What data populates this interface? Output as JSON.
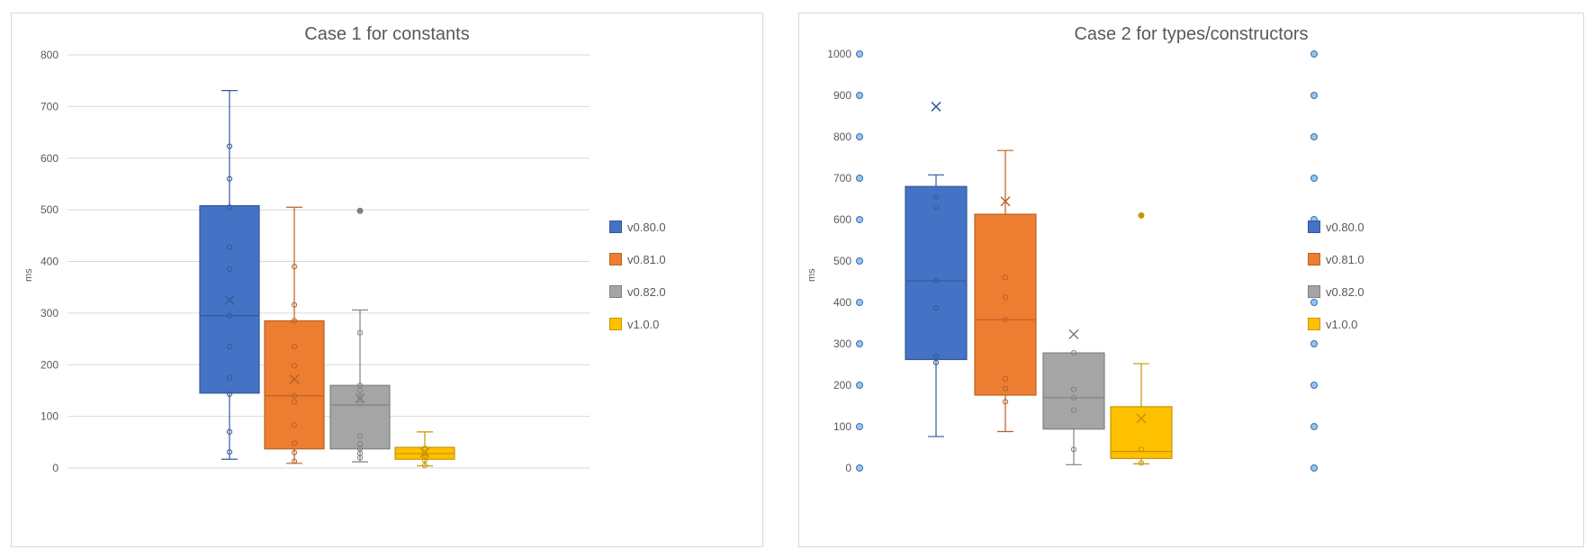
{
  "chart_data": [
    {
      "type": "box",
      "title": "Case 1 for constants",
      "ylabel": "ms",
      "ylim": [
        0,
        800
      ],
      "yticks": [
        0,
        100,
        200,
        300,
        400,
        500,
        600,
        700,
        800
      ],
      "grid": true,
      "legend_position": "right",
      "series": [
        {
          "name": "v0.80.0",
          "color": "#4472c4",
          "min": 17,
          "q1": 145,
          "median": 295,
          "q3": 508,
          "max": 731,
          "mean": 325,
          "points": [
            31,
            70,
            143,
            175,
            235,
            295,
            385,
            428,
            505,
            560,
            623
          ]
        },
        {
          "name": "v0.81.0",
          "color": "#ed7d31",
          "min": 9,
          "q1": 37,
          "median": 140,
          "q3": 285,
          "max": 505,
          "mean": 172,
          "points": [
            13,
            30,
            48,
            83,
            128,
            140,
            198,
            235,
            285,
            316,
            390
          ]
        },
        {
          "name": "v0.82.0",
          "color": "#a5a5a5",
          "min": 12,
          "q1": 37,
          "median": 122,
          "q3": 160,
          "max": 306,
          "mean": 135,
          "points": [
            20,
            28,
            37,
            47,
            62,
            125,
            138,
            150,
            160,
            262
          ],
          "outliers": [
            498
          ]
        },
        {
          "name": "v1.0.0",
          "color": "#ffc000",
          "min": 4,
          "q1": 17,
          "median": 28,
          "q3": 40,
          "max": 70,
          "mean": 30,
          "points": [
            5,
            15,
            22,
            28,
            38
          ]
        }
      ]
    },
    {
      "type": "box",
      "title": "Case 2 for types/constructors",
      "ylabel": "ms",
      "ylim": [
        0,
        1000
      ],
      "yticks": [
        0,
        100,
        200,
        300,
        400,
        500,
        600,
        700,
        800,
        900,
        1000
      ],
      "grid": false,
      "legend_position": "right",
      "series": [
        {
          "name": "v0.80.0",
          "color": "#4472c4",
          "min": 76,
          "q1": 262,
          "median": 452,
          "q3": 680,
          "max": 708,
          "mean": 873,
          "points": [
            255,
            270,
            387,
            452,
            630,
            655
          ]
        },
        {
          "name": "v0.81.0",
          "color": "#ed7d31",
          "min": 88,
          "q1": 176,
          "median": 358,
          "q3": 613,
          "max": 767,
          "mean": 644,
          "points": [
            160,
            192,
            216,
            358,
            412,
            460
          ]
        },
        {
          "name": "v0.82.0",
          "color": "#a5a5a5",
          "min": 8,
          "q1": 94,
          "median": 170,
          "q3": 278,
          "max": 278,
          "mean": 323,
          "points": [
            45,
            140,
            170,
            190,
            278
          ]
        },
        {
          "name": "v1.0.0",
          "color": "#ffc000",
          "min": 10,
          "q1": 23,
          "median": 40,
          "q3": 148,
          "max": 252,
          "mean": 120,
          "points": [
            12,
            45
          ],
          "outliers": [
            610
          ]
        }
      ]
    }
  ]
}
